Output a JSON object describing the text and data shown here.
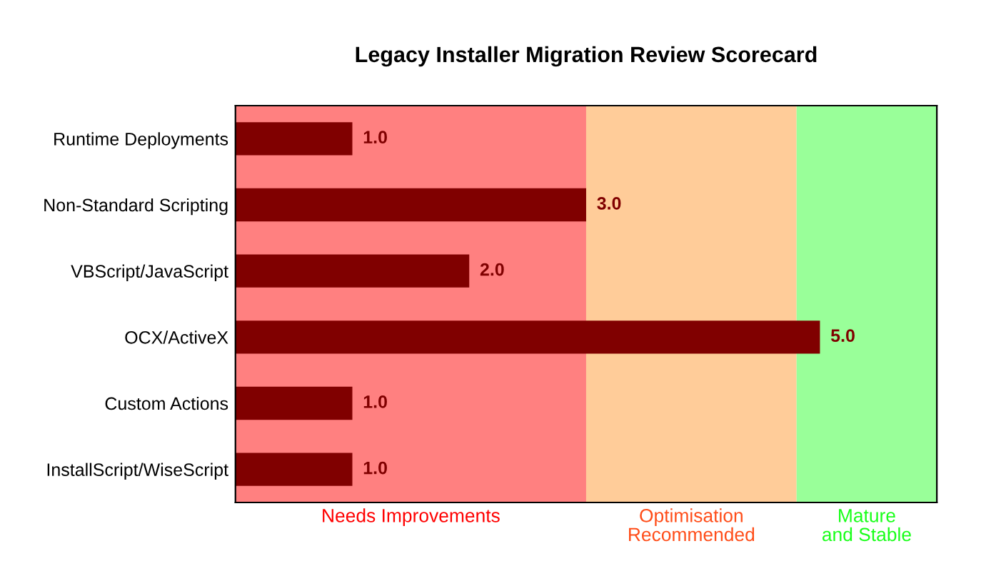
{
  "chart_data": {
    "type": "bar",
    "orientation": "horizontal",
    "title": "Legacy Installer Migration Review Scorecard",
    "categories": [
      "Runtime Deployments",
      "Non-Standard Scripting",
      "VBScript/JavaScript",
      "OCX/ActiveX",
      "Custom Actions",
      "InstallScript/WiseScript"
    ],
    "series": [
      {
        "colors": [
          "#800000",
          "#800000",
          "#800000",
          "#800000",
          "#800000",
          "#800000"
        ],
        "values": [
          1.0,
          3.0,
          2.0,
          5.0,
          1.0,
          1.0
        ],
        "value_labels": [
          "1.0",
          "3.0",
          "2.0",
          "5.0",
          "1.0",
          "1.0"
        ]
      }
    ],
    "tick_labels": "y",
    "bands": [
      {
        "axis": "x",
        "from": 0,
        "to": 3,
        "label": "Needs Improvements",
        "color": "#ff8080"
      },
      {
        "axis": "x",
        "from": 3,
        "to": 4.8,
        "label": "Optimisation Recommended",
        "color": "#ffcc99"
      },
      {
        "axis": "x",
        "from": 4.8,
        "to": 6,
        "label": "Mature and Stable",
        "color": "#99ff99"
      }
    ]
  }
}
